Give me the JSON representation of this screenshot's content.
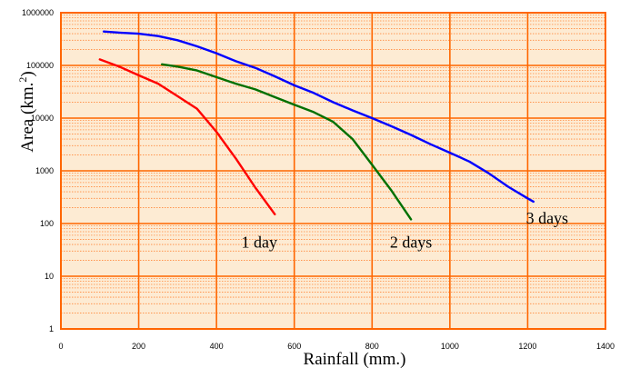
{
  "chart_data": {
    "type": "line",
    "xlabel": "Rainfall (mm.)",
    "ylabel_text": "Area (km.",
    "ylabel_sup": "2",
    "ylabel_close": ")",
    "xlim": [
      0,
      1400
    ],
    "ylim": [
      1,
      1000000
    ],
    "y_scale": "log",
    "grid": true,
    "x_ticks": [
      0,
      200,
      400,
      600,
      800,
      1000,
      1200,
      1400
    ],
    "x_tick_labels": [
      "0",
      "200",
      "400",
      "600",
      "800",
      "1000",
      "1200",
      "1400"
    ],
    "y_ticks": [
      1,
      10,
      100,
      1000,
      10000,
      100000,
      1000000
    ],
    "y_tick_labels": [
      "1",
      "10",
      "100",
      "1000",
      "10000",
      "100000",
      "1000000"
    ],
    "series": [
      {
        "name": "1 day",
        "color": "#ff0000",
        "label_at": [
          510,
          35
        ],
        "points": [
          [
            100,
            130000
          ],
          [
            150,
            95000
          ],
          [
            200,
            65000
          ],
          [
            250,
            45000
          ],
          [
            300,
            26000
          ],
          [
            350,
            15000
          ],
          [
            400,
            5500
          ],
          [
            450,
            1700
          ],
          [
            500,
            480
          ],
          [
            550,
            150
          ]
        ]
      },
      {
        "name": "2 days",
        "color": "#007000",
        "label_at": [
          900,
          35
        ],
        "points": [
          [
            260,
            105000
          ],
          [
            300,
            95000
          ],
          [
            350,
            80000
          ],
          [
            400,
            60000
          ],
          [
            450,
            45000
          ],
          [
            500,
            35000
          ],
          [
            550,
            25000
          ],
          [
            600,
            18000
          ],
          [
            650,
            13000
          ],
          [
            700,
            8500
          ],
          [
            750,
            4000
          ],
          [
            800,
            1300
          ],
          [
            850,
            420
          ],
          [
            900,
            120
          ]
        ]
      },
      {
        "name": "3 days",
        "color": "#0000ff",
        "label_at": [
          1250,
          100
        ],
        "points": [
          [
            110,
            440000
          ],
          [
            150,
            420000
          ],
          [
            200,
            400000
          ],
          [
            250,
            360000
          ],
          [
            300,
            300000
          ],
          [
            350,
            230000
          ],
          [
            400,
            170000
          ],
          [
            450,
            120000
          ],
          [
            500,
            90000
          ],
          [
            550,
            62000
          ],
          [
            600,
            42000
          ],
          [
            650,
            30000
          ],
          [
            700,
            20000
          ],
          [
            750,
            14000
          ],
          [
            800,
            10000
          ],
          [
            850,
            7000
          ],
          [
            900,
            4800
          ],
          [
            950,
            3200
          ],
          [
            1000,
            2200
          ],
          [
            1050,
            1500
          ],
          [
            1100,
            900
          ],
          [
            1150,
            500
          ],
          [
            1200,
            300
          ],
          [
            1215,
            260
          ]
        ]
      }
    ]
  },
  "colors": {
    "plot_background": "#fdebd3",
    "frame": "#ff6600",
    "major_grid": "#ff6600",
    "minor_grid": "#ff8a3d"
  }
}
